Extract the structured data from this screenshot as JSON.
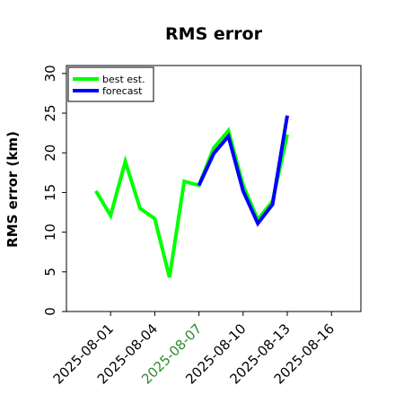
{
  "chart_data": {
    "type": "line",
    "title": "RMS error",
    "xlabel": "",
    "ylabel": "RMS error (km)",
    "ylim": [
      0,
      31
    ],
    "yticks": [
      0,
      5,
      10,
      15,
      20,
      25,
      30
    ],
    "xlim": [
      "2025-07-29",
      "2025-08-18"
    ],
    "xticks": [
      {
        "date": "2025-08-01",
        "label": "2025-08-01",
        "color": "#000000"
      },
      {
        "date": "2025-08-04",
        "label": "2025-08-04",
        "color": "#000000"
      },
      {
        "date": "2025-08-07",
        "label": "2025-08-07",
        "color": "#2e8b2e"
      },
      {
        "date": "2025-08-10",
        "label": "2025-08-10",
        "color": "#000000"
      },
      {
        "date": "2025-08-13",
        "label": "2025-08-13",
        "color": "#000000"
      },
      {
        "date": "2025-08-16",
        "label": "2025-08-16",
        "color": "#000000"
      }
    ],
    "grid": false,
    "legend_position": "top-left",
    "series": [
      {
        "name": "best est.",
        "color": "#00ff00",
        "points": [
          {
            "x": "2025-07-31",
            "y": 15.2
          },
          {
            "x": "2025-08-01",
            "y": 12.1
          },
          {
            "x": "2025-08-02",
            "y": 18.9
          },
          {
            "x": "2025-08-03",
            "y": 13.0
          },
          {
            "x": "2025-08-04",
            "y": 11.7
          },
          {
            "x": "2025-08-05",
            "y": 4.3
          },
          {
            "x": "2025-08-06",
            "y": 16.4
          },
          {
            "x": "2025-08-07",
            "y": 15.9
          },
          {
            "x": "2025-08-08",
            "y": 20.6
          },
          {
            "x": "2025-08-09",
            "y": 22.8
          },
          {
            "x": "2025-08-10",
            "y": 15.9
          },
          {
            "x": "2025-08-11",
            "y": 11.6
          },
          {
            "x": "2025-08-12",
            "y": 13.9
          },
          {
            "x": "2025-08-13",
            "y": 22.3
          }
        ]
      },
      {
        "name": "forecast",
        "color": "#0000ff",
        "points": [
          {
            "x": "2025-08-07",
            "y": 15.9
          },
          {
            "x": "2025-08-08",
            "y": 19.9
          },
          {
            "x": "2025-08-09",
            "y": 22.1
          },
          {
            "x": "2025-08-10",
            "y": 15.2
          },
          {
            "x": "2025-08-11",
            "y": 11.1
          },
          {
            "x": "2025-08-12",
            "y": 13.5
          },
          {
            "x": "2025-08-13",
            "y": 24.7
          }
        ]
      }
    ]
  }
}
